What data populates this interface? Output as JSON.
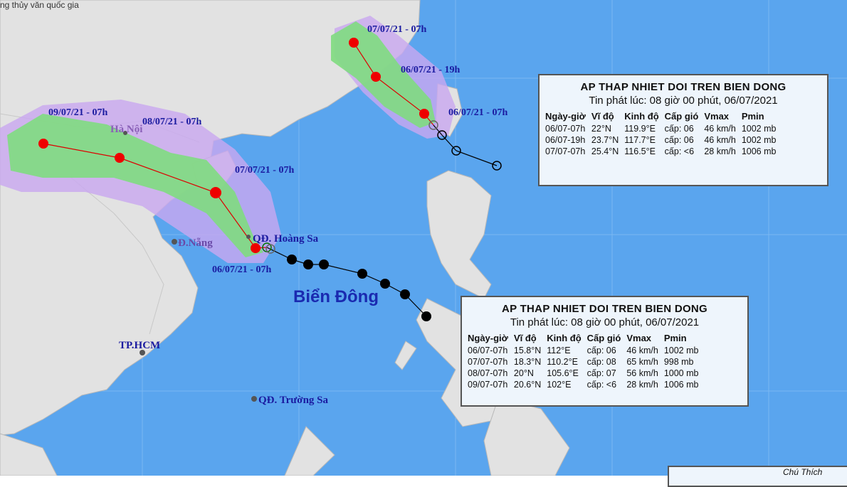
{
  "header": {
    "agency": "ng thủy văn quốc gia"
  },
  "storm_north": {
    "times": [
      "07/07/21 - 07h",
      "06/07/21 - 19h",
      "06/07/21 - 07h"
    ]
  },
  "storm_south": {
    "times": [
      "09/07/21 - 07h",
      "08/07/21 - 07h",
      "07/07/21 - 07h",
      "06/07/21 - 07h"
    ]
  },
  "places": {
    "hanoi": "Hà Nội",
    "danang": "Đ.Nẵng",
    "hoangsa": "QĐ. Hoàng Sa",
    "sea": "Biển Đông",
    "hcm": "TP.HCM",
    "truongsa": "QĐ. Trường Sa"
  },
  "bulletins": [
    {
      "title": "AP THAP NHIET DOI TREN BIEN DONG",
      "issued": "Tin phát lúc: 08 giờ 00 phút, 06/07/2021",
      "columns": [
        "Ngày-giờ",
        "Vĩ độ",
        "Kinh độ",
        "Cấp gió",
        "Vmax",
        "Pmin"
      ],
      "rows": [
        [
          "06/07-07h",
          "22°N",
          "119.9°E",
          "cấp: 06",
          "46 km/h",
          "1002 mb"
        ],
        [
          "06/07-19h",
          "23.7°N",
          "117.7°E",
          "cấp: 06",
          "46 km/h",
          "1002 mb"
        ],
        [
          "07/07-07h",
          "25.4°N",
          "116.5°E",
          "cấp: <6",
          "28 km/h",
          "1006 mb"
        ]
      ]
    },
    {
      "title": "AP THAP NHIET DOI TREN BIEN DONG",
      "issued": "Tin phát lúc: 08 giờ 00 phút, 06/07/2021",
      "columns": [
        "Ngày-giờ",
        "Vĩ độ",
        "Kinh độ",
        "Cấp gió",
        "Vmax",
        "Pmin"
      ],
      "rows": [
        [
          "06/07-07h",
          "15.8°N",
          "112°E",
          "cấp: 06",
          "46 km/h",
          "1002 mb"
        ],
        [
          "07/07-07h",
          "18.3°N",
          "110.2°E",
          "cấp: 08",
          "65 km/h",
          "998 mb"
        ],
        [
          "08/07-07h",
          "20°N",
          "105.6°E",
          "cấp: 07",
          "56 km/h",
          "1000 mb"
        ],
        [
          "09/07-07h",
          "20.6°N",
          "102°E",
          "cấp: <6",
          "28 km/h",
          "1006 mb"
        ]
      ]
    }
  ],
  "legend": {
    "title": "Chú Thích"
  }
}
